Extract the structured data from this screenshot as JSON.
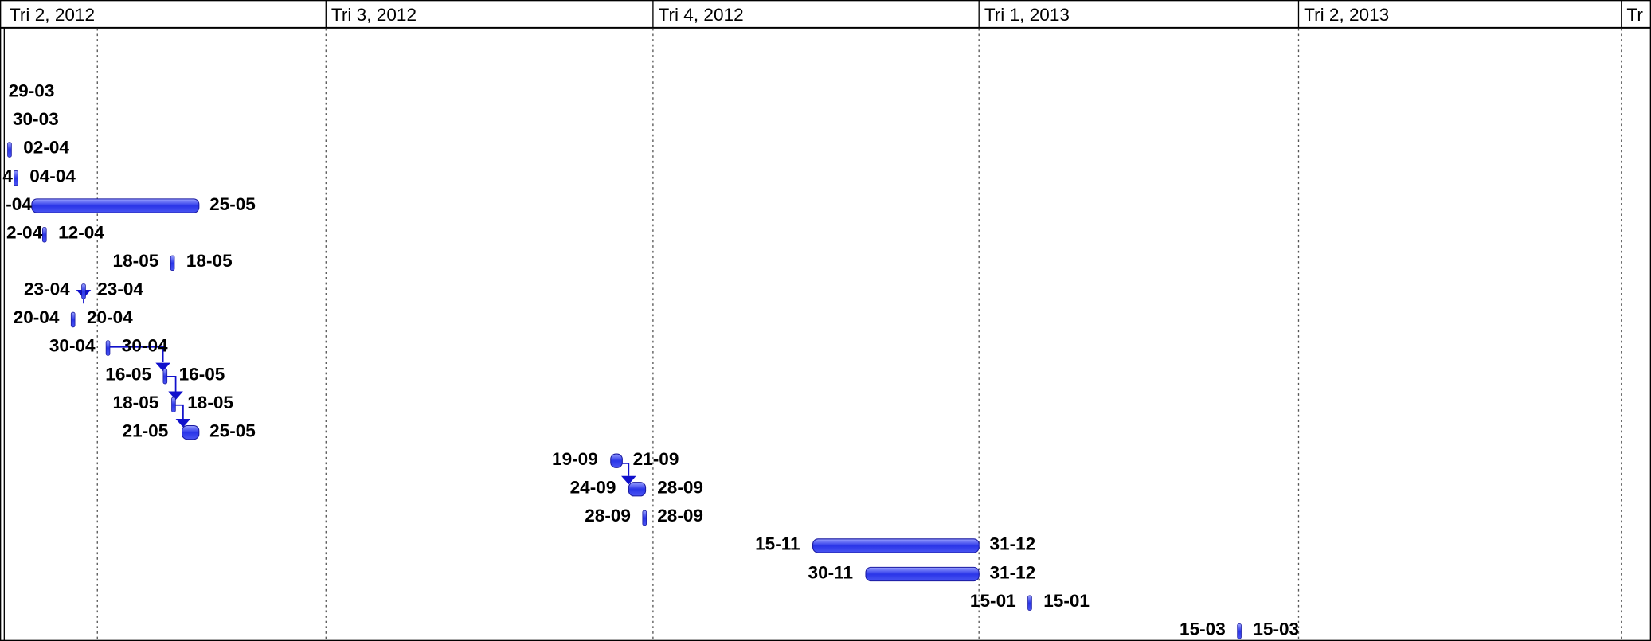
{
  "header": {
    "columns": [
      "Tri 2, 2012",
      "Tri 3, 2012",
      "Tri 4, 2012",
      "Tri 1, 2013",
      "Tri 2, 2013",
      "Tr"
    ]
  },
  "tasks": [
    {
      "start": "29-03"
    },
    {
      "start": "30-03"
    },
    {
      "end": "02-04"
    },
    {
      "start": "4",
      "end": "04-04"
    },
    {
      "start": "-04",
      "end": "25-05"
    },
    {
      "start": "2-04",
      "end": "12-04"
    },
    {
      "start": "18-05",
      "end": "18-05"
    },
    {
      "start": "23-04",
      "end": "23-04"
    },
    {
      "start": "20-04",
      "end": "20-04"
    },
    {
      "start": "30-04",
      "end": "30-04"
    },
    {
      "start": "16-05",
      "end": "16-05"
    },
    {
      "start": "18-05",
      "end": "18-05"
    },
    {
      "start": "21-05",
      "end": "25-05"
    },
    {
      "start": "19-09",
      "end": "21-09"
    },
    {
      "start": "24-09",
      "end": "28-09"
    },
    {
      "start": "28-09",
      "end": "28-09"
    },
    {
      "start": "15-11",
      "end": "31-12"
    },
    {
      "start": "30-11",
      "end": "31-12"
    },
    {
      "start": "15-01",
      "end": "15-01"
    },
    {
      "start": "15-03",
      "end": "15-03"
    }
  ]
}
